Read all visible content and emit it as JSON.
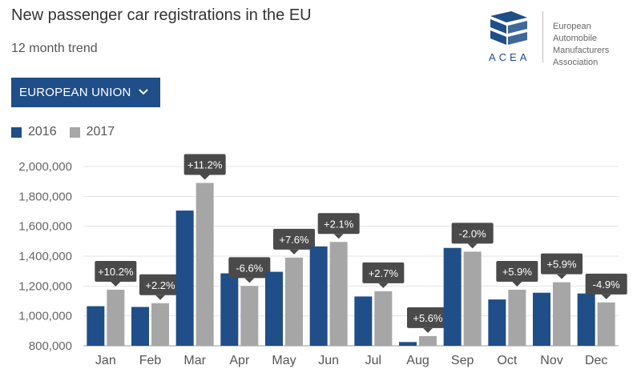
{
  "header": {
    "title": "New passenger car registrations in the EU",
    "subtitle": "12 month trend"
  },
  "brand": {
    "abbr": "ACEA",
    "line1": "European",
    "line2": "Automobile",
    "line3": "Manufacturers",
    "line4": "Association",
    "logo_icon": "acea-cube-logo"
  },
  "region_selector": {
    "label": "EUROPEAN UNION",
    "icon": "chevron-down-icon"
  },
  "colors": {
    "series_2016": "#1f4e88",
    "series_2017": "#a6a6a6",
    "label_bg": "#4a4a4a"
  },
  "chart_data": {
    "type": "bar",
    "title": "New passenger car registrations in the EU",
    "subtitle": "12 month trend",
    "xlabel": "",
    "ylabel": "",
    "ylim": [
      800000,
      2000000
    ],
    "yticks": [
      800000,
      1000000,
      1200000,
      1400000,
      1600000,
      1800000,
      2000000
    ],
    "ytick_labels": [
      "800,000",
      "1,000,000",
      "1,200,000",
      "1,400,000",
      "1,600,000",
      "1,800,000",
      "2,000,000"
    ],
    "grid": true,
    "legend_position": "top-left",
    "categories": [
      "Jan",
      "Feb",
      "Mar",
      "Apr",
      "May",
      "Jun",
      "Jul",
      "Aug",
      "Sep",
      "Oct",
      "Nov",
      "Dec"
    ],
    "series": [
      {
        "name": "2016",
        "values": [
          1065000,
          1060000,
          1705000,
          1285000,
          1295000,
          1465000,
          1130000,
          825000,
          1455000,
          1110000,
          1155000,
          1150000
        ]
      },
      {
        "name": "2017",
        "values": [
          1175000,
          1085000,
          1890000,
          1200000,
          1390000,
          1495000,
          1165000,
          865000,
          1430000,
          1175000,
          1225000,
          1090000
        ]
      }
    ],
    "change_labels": [
      "+10.2%",
      "+2.2%",
      "+11.2%",
      "-6.6%",
      "+7.6%",
      "+2.1%",
      "+2.7%",
      "+5.6%",
      "-2.0%",
      "+5.9%",
      "+5.9%",
      "-4.9%"
    ]
  }
}
